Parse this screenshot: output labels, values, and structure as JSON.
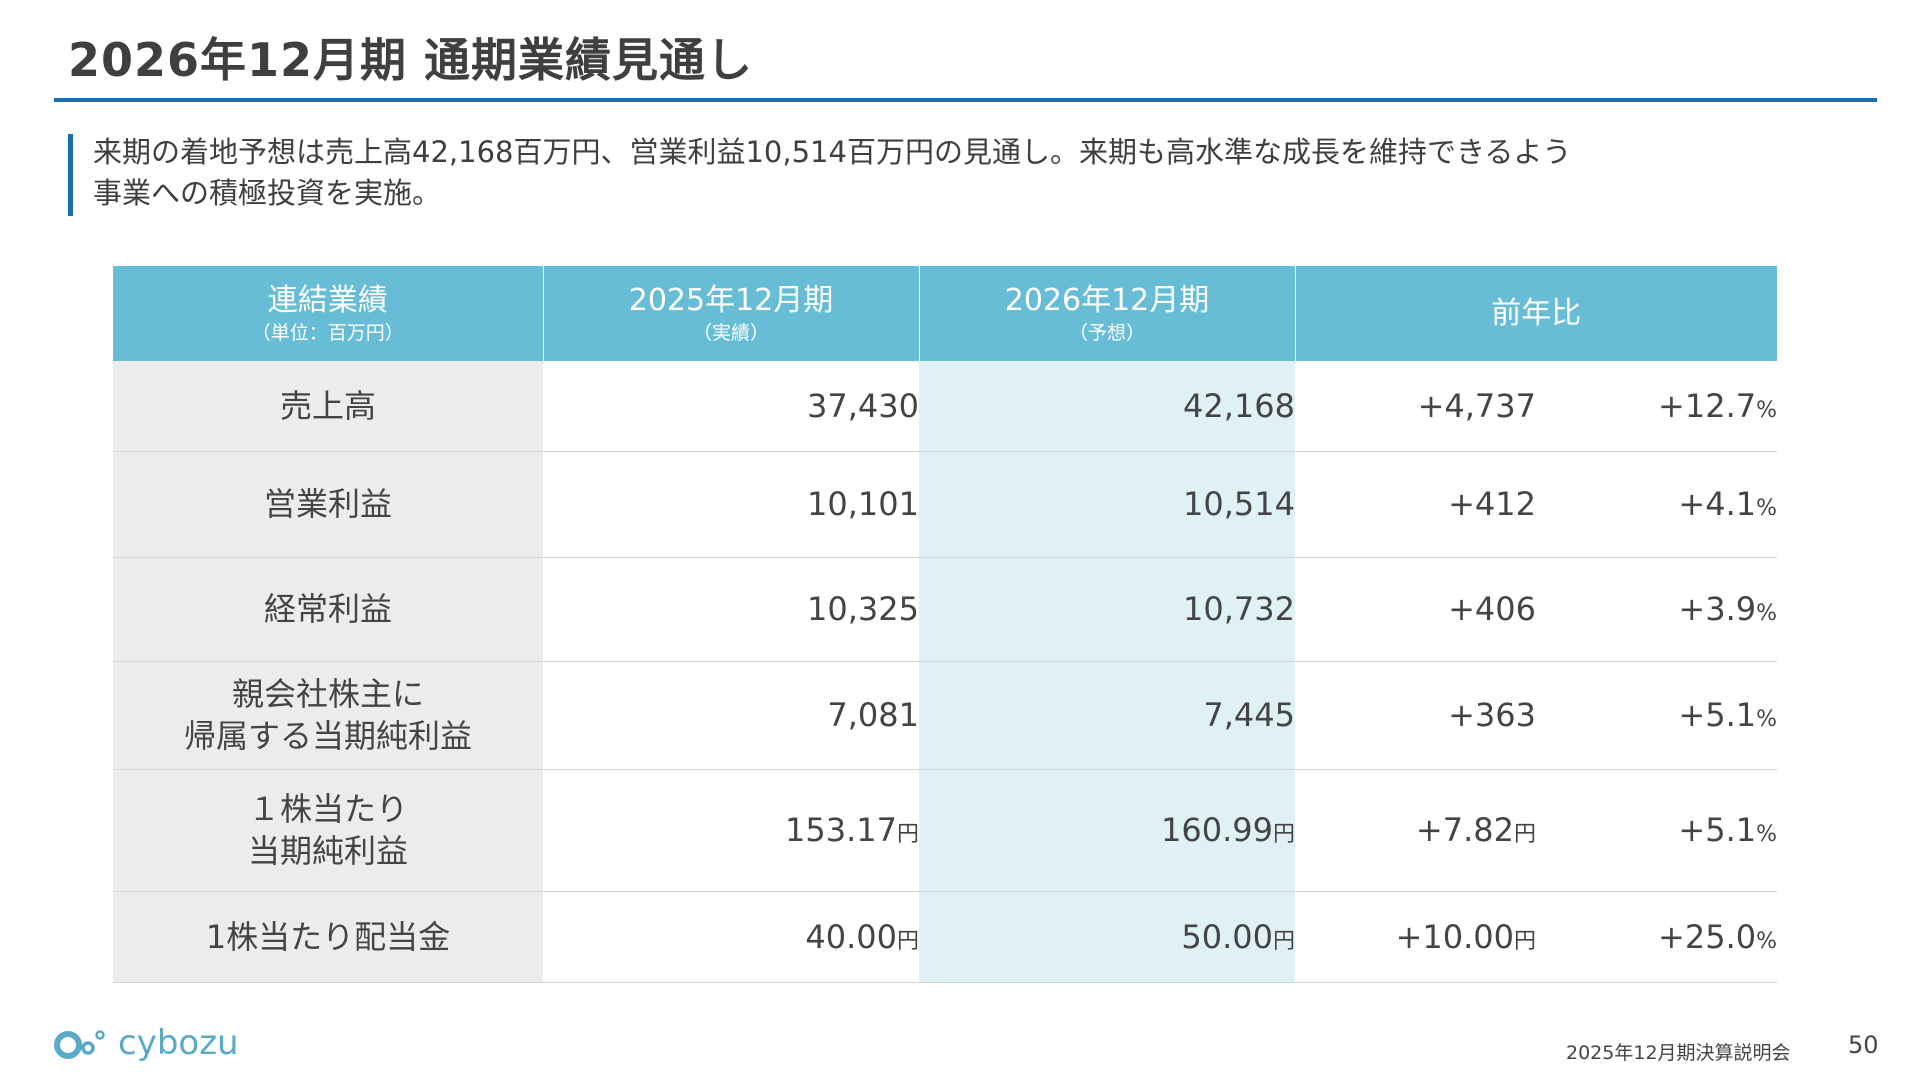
{
  "header": {
    "title": "2026年12月期 通期業績見通し"
  },
  "lead": {
    "line1": "来期の着地予想は売上高42,168百万円、営業利益10,514百万円の見通し。来期も高水準な成長を維持できるよう",
    "line2": "事業への積極投資を実施。"
  },
  "table": {
    "headers": [
      {
        "main": "連結業績",
        "sub": "（単位：百万円）"
      },
      {
        "main": "2025年12月期",
        "sub": "（実績）"
      },
      {
        "main": "2026年12月期",
        "sub": "（予想）"
      },
      {
        "main": "前年比",
        "sub": ""
      }
    ],
    "rows": [
      {
        "label": [
          "売上高"
        ],
        "prev": "37,430",
        "prev_unit": "",
        "next": "42,168",
        "next_unit": "",
        "diff": "+4,737",
        "diff_unit": "",
        "pct": "+12.7",
        "pct_unit": "%"
      },
      {
        "label": [
          "営業利益"
        ],
        "prev": "10,101",
        "prev_unit": "",
        "next": "10,514",
        "next_unit": "",
        "diff": "+412",
        "diff_unit": "",
        "pct": "+4.1",
        "pct_unit": "%"
      },
      {
        "label": [
          "経常利益"
        ],
        "prev": "10,325",
        "prev_unit": "",
        "next": "10,732",
        "next_unit": "",
        "diff": "+406",
        "diff_unit": "",
        "pct": "+3.9",
        "pct_unit": "%"
      },
      {
        "label": [
          "親会社株主に",
          "帰属する当期純利益"
        ],
        "prev": "7,081",
        "prev_unit": "",
        "next": "7,445",
        "next_unit": "",
        "diff": "+363",
        "diff_unit": "",
        "pct": "+5.1",
        "pct_unit": "%"
      },
      {
        "label": [
          "１株当たり",
          "当期純利益"
        ],
        "prev": "153.17",
        "prev_unit": "円",
        "next": "160.99",
        "next_unit": "円",
        "diff": "+7.82",
        "diff_unit": "円",
        "pct": "+5.1",
        "pct_unit": "%"
      },
      {
        "label": [
          "1株当たり配当金"
        ],
        "prev": "40.00",
        "prev_unit": "円",
        "next": "50.00",
        "next_unit": "円",
        "diff": "+10.00",
        "diff_unit": "円",
        "pct": "+25.0",
        "pct_unit": "%"
      }
    ]
  },
  "logo": {
    "text": "cybozu"
  },
  "footer": {
    "event": "2025年12月期決算説明会",
    "page": "50"
  },
  "colors": {
    "accent": "#1c6eb4",
    "header_bg": "#67bcd6",
    "label_bg": "#ececec",
    "forecast_bg": "#e0f1f6",
    "logo": "#5aa9c9"
  }
}
